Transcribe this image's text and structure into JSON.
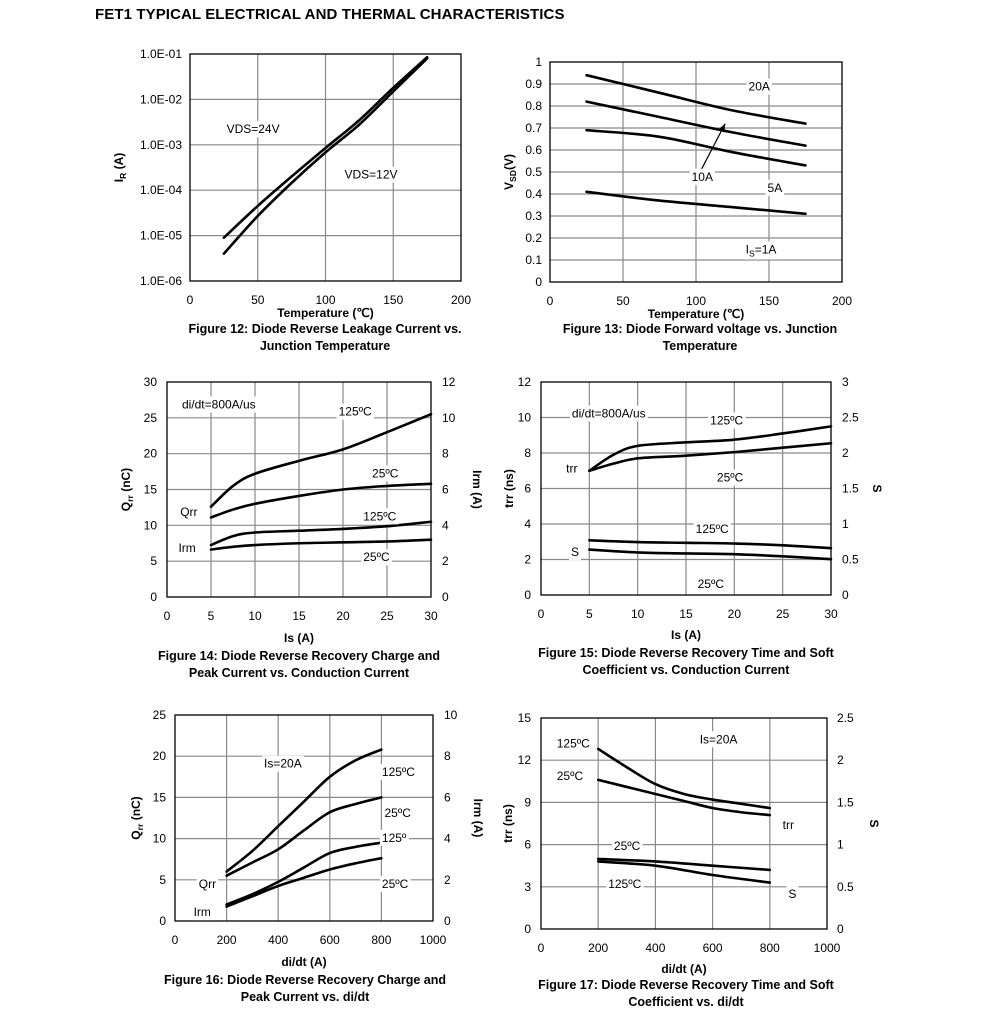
{
  "page_title": "FET1 TYPICAL ELECTRICAL AND THERMAL CHARACTERISTICS",
  "captions": {
    "fig12": [
      "Figure 12: Diode Reverse Leakage Current vs.",
      "Junction Temperature"
    ],
    "fig13": [
      "Figure 13: Diode Forward voltage vs. Junction",
      "Temperature"
    ],
    "fig14": [
      "Figure 14: Diode Reverse Recovery Charge and",
      "Peak Current vs. Conduction Current"
    ],
    "fig15": [
      "Figure 15: Diode Reverse Recovery Time and Soft",
      "Coefficient vs. Conduction Current"
    ],
    "fig16": [
      "Figure 16: Diode Reverse Recovery Charge and",
      "Peak Current vs. di/dt"
    ],
    "fig17": [
      "Figure 17: Diode Reverse Recovery Time and Soft",
      "Coefficient vs. di/dt"
    ]
  },
  "chart_data": [
    {
      "id": "fig12",
      "type": "line",
      "xlabel": "Temperature (℃)",
      "ylabel": "I_R (A)",
      "ylabel_main": "I",
      "ylabel_sub": "R",
      "ylabel_rest": " (A)",
      "xlim": [
        0,
        200
      ],
      "ylim": [
        1e-06,
        0.1
      ],
      "yscale": "log",
      "xticks": [
        0,
        50,
        100,
        150,
        200
      ],
      "xtick_labels": [
        "0",
        "50",
        "100",
        "150",
        "200"
      ],
      "yticks": [
        1e-06,
        1e-05,
        0.0001,
        0.001,
        0.01,
        0.1
      ],
      "ytick_labels": [
        "1.0E-06",
        "1.0E-05",
        "1.0E-04",
        "1.0E-03",
        "1.0E-02",
        "1.0E-01"
      ],
      "grid": true,
      "series": [
        {
          "name": "VDS=24V",
          "axis": "left",
          "x": [
            25,
            50,
            75,
            100,
            125,
            150,
            175
          ],
          "y": [
            9e-06,
            4.5e-05,
            0.0002,
            0.00085,
            0.0035,
            0.018,
            0.085
          ]
        },
        {
          "name": "VDS=12V",
          "axis": "left",
          "x": [
            25,
            50,
            75,
            100,
            125,
            150,
            175
          ],
          "y": [
            4e-06,
            2.7e-05,
            0.000145,
            0.00068,
            0.0028,
            0.015,
            0.08
          ]
        }
      ],
      "annotations": [
        {
          "text": "VDS=24V",
          "x": 27,
          "y": 0.0018
        },
        {
          "text": "VDS=12V",
          "x": 114,
          "y": 0.00018
        }
      ]
    },
    {
      "id": "fig13",
      "type": "line",
      "xlabel": "Temperature (℃)",
      "ylabel": "V_SD(V)",
      "ylabel_main": "V",
      "ylabel_sub": "SD",
      "ylabel_rest": "(V)",
      "xlim": [
        0,
        200
      ],
      "ylim": [
        0,
        1
      ],
      "xticks": [
        0,
        50,
        100,
        150,
        200
      ],
      "xtick_labels": [
        "0",
        "50",
        "100",
        "150",
        "200"
      ],
      "yticks": [
        0,
        0.1,
        0.2,
        0.3,
        0.4,
        0.5,
        0.6,
        0.7,
        0.8,
        0.9,
        1
      ],
      "ytick_labels": [
        "0",
        "0.1",
        "0.2",
        "0.3",
        "0.4",
        "0.5",
        "0.6",
        "0.7",
        "0.8",
        "0.9",
        "1"
      ],
      "grid": true,
      "series": [
        {
          "name": "20A",
          "axis": "left",
          "x": [
            25,
            75,
            125,
            175
          ],
          "y": [
            0.94,
            0.86,
            0.78,
            0.72
          ]
        },
        {
          "name": "10A",
          "axis": "left",
          "x": [
            25,
            75,
            125,
            175
          ],
          "y": [
            0.82,
            0.75,
            0.68,
            0.62
          ]
        },
        {
          "name": "5A",
          "axis": "left",
          "x": [
            25,
            75,
            125,
            175
          ],
          "y": [
            0.69,
            0.66,
            0.59,
            0.53
          ]
        },
        {
          "name": "IS=1A",
          "axis": "left",
          "x": [
            25,
            75,
            125,
            175
          ],
          "y": [
            0.41,
            0.37,
            0.34,
            0.31
          ]
        }
      ],
      "annotations": [
        {
          "text": "20A",
          "x": 136,
          "y": 0.87
        },
        {
          "text": "10A",
          "x": 97,
          "y": 0.46
        },
        {
          "text": "5A",
          "x": 149,
          "y": 0.41
        },
        {
          "text": "IS=1A",
          "x": 134,
          "y": 0.13,
          "main": "I",
          "sub": "S",
          "rest": "=1A"
        }
      ],
      "arrow": {
        "from": [
          102,
          0.49
        ],
        "to": [
          120,
          0.72
        ]
      }
    },
    {
      "id": "fig14",
      "type": "line",
      "xlabel": "Is (A)",
      "ylabel": "Q_rr (nC)",
      "ylabel_main": "Q",
      "ylabel_sub": "rr",
      "ylabel_rest": " (nC)",
      "y2label": "Irm (A)",
      "xlim": [
        0,
        30
      ],
      "ylim": [
        0,
        30
      ],
      "y2lim": [
        0,
        12
      ],
      "xticks": [
        0,
        5,
        10,
        15,
        20,
        25,
        30
      ],
      "xtick_labels": [
        "0",
        "5",
        "10",
        "15",
        "20",
        "25",
        "30"
      ],
      "yticks": [
        0,
        5,
        10,
        15,
        20,
        25,
        30
      ],
      "ytick_labels": [
        "0",
        "5",
        "10",
        "15",
        "20",
        "25",
        "30"
      ],
      "y2ticks": [
        0,
        2,
        4,
        6,
        8,
        10,
        12
      ],
      "y2tick_labels": [
        "0",
        "2",
        "4",
        "6",
        "8",
        "10",
        "12"
      ],
      "grid": true,
      "series": [
        {
          "name": "Qrr 125°C",
          "axis": "left",
          "x": [
            5,
            7.5,
            10,
            15,
            20,
            25,
            30
          ],
          "y": [
            12.6,
            15.5,
            17.2,
            19,
            20.6,
            23,
            25.5
          ]
        },
        {
          "name": "Qrr 25°C",
          "axis": "left",
          "x": [
            5,
            7.5,
            10,
            15,
            20,
            25,
            30
          ],
          "y": [
            11.1,
            12.2,
            13,
            14.1,
            15,
            15.5,
            15.8
          ]
        },
        {
          "name": "Irm 125°C",
          "axis": "right",
          "x": [
            5,
            7.5,
            10,
            15,
            20,
            25,
            30
          ],
          "y": [
            2.9,
            3.4,
            3.6,
            3.7,
            3.8,
            3.95,
            4.2
          ]
        },
        {
          "name": "Irm 25°C",
          "axis": "right",
          "x": [
            5,
            7.5,
            10,
            15,
            20,
            25,
            30
          ],
          "y": [
            2.65,
            2.8,
            2.9,
            3.0,
            3.05,
            3.1,
            3.2
          ]
        }
      ],
      "annotations": [
        {
          "text": "di/dt=800A/us",
          "x": 1.7,
          "y": 26.3
        },
        {
          "text": "125ºC",
          "x": 19.5,
          "y": 25.3
        },
        {
          "text": "25ºC",
          "x": 23.3,
          "y": 16.7
        },
        {
          "text": "125ºC",
          "x": 22.3,
          "y": 10.7
        },
        {
          "text": "25ºC",
          "x": 22.3,
          "y": 5.0
        },
        {
          "text": "Qrr",
          "x": 1.5,
          "y": 11.3
        },
        {
          "text": "Irm",
          "x": 1.3,
          "y": 6.3
        }
      ]
    },
    {
      "id": "fig15",
      "type": "line",
      "xlabel": "Is (A)",
      "ylabel": "trr (ns)",
      "y2label": "S",
      "xlim": [
        0,
        30
      ],
      "ylim": [
        0,
        12
      ],
      "y2lim": [
        0,
        3
      ],
      "xticks": [
        0,
        5,
        10,
        15,
        20,
        25,
        30
      ],
      "xtick_labels": [
        "0",
        "5",
        "10",
        "15",
        "20",
        "25",
        "30"
      ],
      "yticks": [
        0,
        2,
        4,
        6,
        8,
        10,
        12
      ],
      "ytick_labels": [
        "0",
        "2",
        "4",
        "6",
        "8",
        "10",
        "12"
      ],
      "y2ticks": [
        0,
        0.5,
        1,
        1.5,
        2,
        2.5,
        3
      ],
      "y2tick_labels": [
        "0",
        "0.5",
        "1",
        "1.5",
        "2",
        "2.5",
        "3"
      ],
      "grid": true,
      "series": [
        {
          "name": "trr 125°C",
          "axis": "left",
          "x": [
            5,
            7.5,
            10,
            15,
            20,
            25,
            30
          ],
          "y": [
            7.0,
            7.9,
            8.4,
            8.6,
            8.75,
            9.1,
            9.5
          ]
        },
        {
          "name": "trr 25°C",
          "axis": "left",
          "x": [
            5,
            7.5,
            10,
            15,
            20,
            25,
            30
          ],
          "y": [
            7.0,
            7.4,
            7.7,
            7.85,
            8.05,
            8.3,
            8.55
          ]
        },
        {
          "name": "S 125°C",
          "axis": "right",
          "x": [
            5,
            10,
            15,
            20,
            25,
            30
          ],
          "y": [
            0.77,
            0.745,
            0.735,
            0.725,
            0.7,
            0.66
          ]
        },
        {
          "name": "S 25°C",
          "axis": "right",
          "x": [
            5,
            10,
            15,
            20,
            25,
            30
          ],
          "y": [
            0.64,
            0.6,
            0.585,
            0.575,
            0.545,
            0.505
          ]
        }
      ],
      "annotations": [
        {
          "text": "di/dt=800A/us",
          "x": 3.2,
          "y": 10.0
        },
        {
          "text": "125ºC",
          "x": 17.5,
          "y": 9.6
        },
        {
          "text": "25ºC",
          "x": 18.2,
          "y": 6.4
        },
        {
          "text": "trr",
          "x": 2.6,
          "y": 6.9
        },
        {
          "text": "125ºC",
          "x": 16,
          "y": 3.5
        },
        {
          "text": "S",
          "x": 3.1,
          "y": 2.2
        },
        {
          "text": "25ºC",
          "x": 16.2,
          "y": 0.4
        }
      ]
    },
    {
      "id": "fig16",
      "type": "line",
      "xlabel": "di/dt (A)",
      "ylabel": "Q_rr (nC)",
      "ylabel_main": "Q",
      "ylabel_sub": "rr",
      "ylabel_rest": " (nC)",
      "y2label": "Irm (A)",
      "xlim": [
        0,
        1000
      ],
      "ylim": [
        0,
        25
      ],
      "y2lim": [
        0,
        10
      ],
      "xticks": [
        0,
        200,
        400,
        600,
        800,
        1000
      ],
      "xtick_labels": [
        "0",
        "200",
        "400",
        "600",
        "800",
        "1000"
      ],
      "yticks": [
        0,
        5,
        10,
        15,
        20,
        25
      ],
      "ytick_labels": [
        "0",
        "5",
        "10",
        "15",
        "20",
        "25"
      ],
      "y2ticks": [
        0,
        2,
        4,
        6,
        8,
        10
      ],
      "y2tick_labels": [
        "0",
        "2",
        "4",
        "6",
        "8",
        "10"
      ],
      "grid": true,
      "series": [
        {
          "name": "Qrr 125°C",
          "axis": "left",
          "x": [
            200,
            300,
            400,
            500,
            600,
            700,
            800
          ],
          "y": [
            6.0,
            8.5,
            11.5,
            14.5,
            17.5,
            19.5,
            20.8
          ]
        },
        {
          "name": "Qrr 25°C",
          "axis": "left",
          "x": [
            200,
            300,
            400,
            500,
            600,
            700,
            800
          ],
          "y": [
            5.5,
            7.1,
            8.7,
            11.0,
            13.2,
            14.2,
            15.0
          ]
        },
        {
          "name": "Irm 125°",
          "axis": "right",
          "x": [
            200,
            300,
            400,
            500,
            600,
            700,
            800
          ],
          "y": [
            0.8,
            1.3,
            1.9,
            2.6,
            3.3,
            3.6,
            3.8
          ]
        },
        {
          "name": "Irm 25°C",
          "axis": "right",
          "x": [
            200,
            300,
            400,
            500,
            600,
            700,
            800
          ],
          "y": [
            0.7,
            1.2,
            1.7,
            2.1,
            2.5,
            2.8,
            3.05
          ]
        }
      ],
      "annotations": [
        {
          "text": "Is=20A",
          "x": 345,
          "y": 18.6
        },
        {
          "text": "125ºC",
          "x": 802,
          "y": 17.6
        },
        {
          "text": "25ºC",
          "x": 812,
          "y": 12.6
        },
        {
          "text": "125º",
          "x": 802,
          "y": 9.6
        },
        {
          "text": "25ºC",
          "x": 802,
          "y": 4.0
        },
        {
          "text": "Qrr",
          "x": 92,
          "y": 4.0
        },
        {
          "text": "Irm",
          "x": 72,
          "y": 0.6
        }
      ]
    },
    {
      "id": "fig17",
      "type": "line",
      "xlabel": "di/dt (A)",
      "ylabel": "trr (ns)",
      "y2label": "S",
      "xlim": [
        0,
        1000
      ],
      "ylim": [
        0,
        15
      ],
      "y2lim": [
        0,
        2.5
      ],
      "xticks": [
        0,
        200,
        400,
        600,
        800,
        1000
      ],
      "xtick_labels": [
        "0",
        "200",
        "400",
        "600",
        "800",
        "1000"
      ],
      "yticks": [
        0,
        3,
        6,
        9,
        12,
        15
      ],
      "ytick_labels": [
        "0",
        "3",
        "6",
        "9",
        "12",
        "15"
      ],
      "y2ticks": [
        0,
        0.5,
        1,
        1.5,
        2,
        2.5
      ],
      "y2tick_labels": [
        "0",
        "0.5",
        "1",
        "1.5",
        "2",
        "2.5"
      ],
      "grid": true,
      "series": [
        {
          "name": "trr 125°C",
          "axis": "left",
          "x": [
            200,
            300,
            400,
            500,
            600,
            700,
            800
          ],
          "y": [
            12.8,
            11.5,
            10.3,
            9.6,
            9.2,
            8.9,
            8.6
          ]
        },
        {
          "name": "trr 25°C",
          "axis": "left",
          "x": [
            200,
            300,
            400,
            500,
            600,
            700,
            800
          ],
          "y": [
            10.6,
            10.1,
            9.6,
            9.1,
            8.6,
            8.3,
            8.1
          ]
        },
        {
          "name": "S 25°C",
          "axis": "right",
          "x": [
            200,
            400,
            600,
            800
          ],
          "y": [
            0.83,
            0.8,
            0.75,
            0.7
          ]
        },
        {
          "name": "S 125°C",
          "axis": "right",
          "x": [
            200,
            400,
            600,
            800
          ],
          "y": [
            0.8,
            0.75,
            0.64,
            0.55
          ]
        }
      ],
      "annotations": [
        {
          "text": "Is=20A",
          "x": 555,
          "y": 13.2
        },
        {
          "text": "125ºC",
          "x": 55,
          "y": 12.9
        },
        {
          "text": "25ºC",
          "x": 55,
          "y": 10.6
        },
        {
          "text": "trr",
          "x": 845,
          "y": 7.1
        },
        {
          "text": "25ºC",
          "x": 255,
          "y": 5.6
        },
        {
          "text": "125ºC",
          "x": 235,
          "y": 2.9
        },
        {
          "text": "S",
          "x": 865,
          "y": 2.2
        }
      ]
    }
  ]
}
